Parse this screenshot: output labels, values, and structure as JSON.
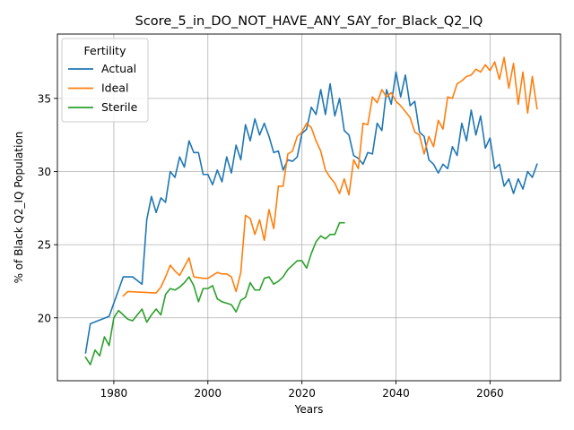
{
  "chart_data": {
    "type": "line",
    "title": "Score_5_in_DO_NOT_HAVE_ANY_SAY_for_Black_Q2_IQ",
    "xlabel": "Years",
    "ylabel": "% of Black Q2_IQ Population",
    "xlim": [
      1968,
      2075
    ],
    "ylim": [
      15.7,
      39.4
    ],
    "xticks": [
      1980,
      2000,
      2020,
      2040,
      2060
    ],
    "yticks": [
      20,
      25,
      30,
      35
    ],
    "grid": true,
    "legend": {
      "title": "Fertility",
      "placement": "top-left"
    },
    "series": [
      {
        "name": "Actual",
        "color": "#1f77b4",
        "x": [
          1974,
          1975,
          1979,
          1982,
          1984,
          1986,
          1987,
          1988,
          1989,
          1990,
          1991,
          1992,
          1993,
          1994,
          1995,
          1996,
          1997,
          1998,
          1999,
          2000,
          2001,
          2002,
          2003,
          2004,
          2005,
          2006,
          2007,
          2008,
          2009,
          2010,
          2011,
          2012,
          2013,
          2014,
          2015,
          2016,
          2017,
          2018,
          2019,
          2020,
          2021,
          2022,
          2023,
          2024,
          2025,
          2026,
          2027,
          2028,
          2029,
          2030,
          2031,
          2032,
          2033,
          2034,
          2035,
          2036,
          2037,
          2038,
          2039,
          2040,
          2041,
          2042,
          2043,
          2044,
          2045,
          2046,
          2047,
          2048,
          2049,
          2050,
          2051,
          2052,
          2053,
          2054,
          2055,
          2056,
          2057,
          2058,
          2059,
          2060,
          2061,
          2062,
          2063,
          2064,
          2065,
          2066,
          2067,
          2068,
          2069,
          2070
        ],
        "y": [
          17.6,
          19.6,
          20.1,
          22.8,
          22.8,
          22.3,
          26.7,
          28.3,
          27.2,
          28.2,
          27.9,
          30.0,
          29.6,
          31.0,
          30.3,
          32.1,
          31.3,
          31.3,
          29.8,
          29.8,
          29.1,
          30.1,
          29.3,
          31.0,
          29.9,
          31.8,
          30.8,
          33.2,
          32.1,
          33.6,
          32.5,
          33.3,
          32.4,
          31.3,
          31.4,
          30.1,
          30.8,
          30.7,
          31.0,
          32.6,
          32.9,
          34.4,
          33.9,
          35.6,
          33.9,
          36.0,
          33.8,
          35.0,
          32.8,
          32.5,
          31.1,
          30.9,
          30.5,
          31.3,
          31.2,
          33.3,
          32.8,
          35.6,
          34.6,
          36.8,
          35.1,
          36.6,
          34.5,
          34.8,
          32.7,
          32.4,
          30.8,
          30.5,
          29.9,
          30.5,
          30.2,
          31.7,
          31.1,
          33.3,
          32.1,
          34.2,
          32.5,
          33.8,
          31.6,
          32.3,
          30.2,
          30.5,
          29.0,
          29.5,
          28.5,
          29.5,
          28.8,
          30.0,
          29.6,
          30.5
        ]
      },
      {
        "name": "Ideal",
        "color": "#ff7f0e",
        "x": [
          1982,
          1983,
          1989,
          1990,
          1991,
          1992,
          1993,
          1994,
          1995,
          1996,
          1997,
          1999,
          2000,
          2001,
          2002,
          2003,
          2004,
          2005,
          2006,
          2007,
          2008,
          2009,
          2010,
          2011,
          2012,
          2013,
          2014,
          2015,
          2016,
          2017,
          2018,
          2019,
          2020,
          2021,
          2022,
          2023,
          2024,
          2025,
          2026,
          2027,
          2028,
          2029,
          2030,
          2031,
          2032,
          2033,
          2034,
          2035,
          2036,
          2037,
          2038,
          2039,
          2040,
          2041,
          2042,
          2043,
          2044,
          2045,
          2046,
          2047,
          2048,
          2049,
          2050,
          2051,
          2052,
          2053,
          2054,
          2055,
          2056,
          2057,
          2058,
          2059,
          2060,
          2061,
          2062,
          2063,
          2064,
          2065,
          2066,
          2067,
          2068,
          2069,
          2070
        ],
        "y": [
          21.5,
          21.8,
          21.7,
          22.1,
          22.8,
          23.6,
          23.2,
          22.9,
          23.5,
          24.1,
          22.8,
          22.7,
          22.7,
          22.9,
          23.1,
          23.0,
          23.0,
          22.8,
          21.8,
          23.1,
          27.0,
          26.8,
          25.7,
          26.7,
          25.3,
          27.4,
          26.1,
          29.0,
          29.0,
          31.2,
          31.4,
          32.4,
          32.7,
          33.3,
          33.0,
          32.1,
          31.4,
          30.1,
          29.6,
          29.2,
          28.5,
          29.5,
          28.4,
          30.8,
          30.2,
          33.3,
          33.2,
          35.1,
          34.7,
          35.6,
          35.1,
          35.4,
          34.8,
          34.5,
          34.1,
          33.7,
          32.7,
          32.5,
          31.2,
          32.4,
          31.7,
          33.5,
          32.9,
          35.1,
          35.0,
          36.0,
          36.2,
          36.5,
          36.6,
          37.0,
          36.8,
          37.3,
          36.9,
          37.5,
          36.3,
          37.8,
          35.7,
          37.4,
          34.6,
          36.8,
          34.0,
          36.5,
          34.3
        ]
      },
      {
        "name": "Sterile",
        "color": "#2ca02c",
        "x": [
          1974,
          1975,
          1976,
          1977,
          1978,
          1979,
          1980,
          1981,
          1982,
          1983,
          1984,
          1985,
          1986,
          1987,
          1988,
          1989,
          1990,
          1991,
          1992,
          1993,
          1994,
          1995,
          1996,
          1997,
          1998,
          1999,
          2000,
          2001,
          2002,
          2003,
          2004,
          2005,
          2006,
          2007,
          2008,
          2009,
          2010,
          2011,
          2012,
          2013,
          2014,
          2015,
          2016,
          2017,
          2018,
          2019,
          2020,
          2021,
          2022,
          2023,
          2024,
          2025,
          2026,
          2027,
          2028,
          2029
        ],
        "y": [
          17.3,
          16.8,
          17.8,
          17.4,
          18.7,
          18.1,
          20.0,
          20.5,
          20.2,
          19.9,
          19.8,
          20.2,
          20.6,
          19.7,
          20.2,
          20.6,
          20.2,
          21.6,
          22.0,
          21.9,
          22.1,
          22.4,
          22.8,
          22.2,
          21.1,
          22.0,
          22.0,
          22.2,
          21.3,
          21.1,
          21.0,
          20.9,
          20.4,
          21.2,
          21.4,
          22.4,
          21.9,
          21.9,
          22.7,
          22.8,
          22.3,
          22.5,
          22.8,
          23.3,
          23.6,
          23.9,
          23.9,
          23.4,
          24.4,
          25.2,
          25.6,
          25.4,
          25.7,
          25.7,
          26.5,
          26.5
        ]
      }
    ]
  }
}
